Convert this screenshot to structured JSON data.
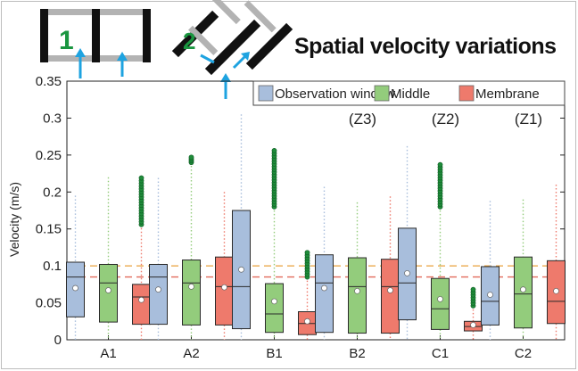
{
  "title": "Spatial velocity variations",
  "diagram_labels": {
    "straight_channel": "1",
    "angled_channel": "2"
  },
  "colors": {
    "observation_window": "#a8bedc",
    "middle": "#93cc7c",
    "membrane": "#ee7a6c",
    "outlier": "#1f8c3a",
    "ref_upper": "#e8a23c",
    "ref_lower": "#e26a5a",
    "arrow": "#1ea3e0",
    "channel_wall": "#111111",
    "channel_gray": "#b3b3b3",
    "diagram_number": "#1a9640"
  },
  "chart_data": {
    "type": "box",
    "ylabel": "Velocity (m/s)",
    "xlabel": "",
    "ylim": [
      0,
      0.35
    ],
    "yticks": [
      0,
      0.05,
      0.1,
      0.15,
      0.2,
      0.25,
      0.3,
      0.35
    ],
    "ytick_labels": [
      "0",
      "0.05",
      "0.1",
      "0.15",
      "0.2",
      "0.25",
      "0.3",
      "0.35"
    ],
    "grid": false,
    "legend_position": "top-right",
    "categories": [
      "A1",
      "A2",
      "B1",
      "B2",
      "C1",
      "C2"
    ],
    "zone_labels": [
      {
        "category": "B2",
        "text": "(Z3)"
      },
      {
        "category": "C1",
        "text": "(Z2)"
      },
      {
        "category": "C2",
        "text": "(Z1)"
      }
    ],
    "reference_lines": [
      {
        "y": 0.1,
        "style": "dashed",
        "color": "#e8a23c"
      },
      {
        "y": 0.085,
        "style": "dashed",
        "color": "#e26a5a"
      }
    ],
    "series": [
      {
        "name": "Observation window",
        "color": "#a8bedc",
        "boxes": [
          {
            "whisker_low": 0,
            "q1": 0.031,
            "median": 0.085,
            "q3": 0.105,
            "whisker_high": 0.195,
            "mean": 0.07
          },
          {
            "whisker_low": 0,
            "q1": 0.021,
            "median": 0.085,
            "q3": 0.102,
            "whisker_high": 0.219,
            "mean": 0.068
          },
          {
            "whisker_low": 0,
            "q1": 0.015,
            "median": 0.072,
            "q3": 0.175,
            "whisker_high": 0.305,
            "mean": 0.095
          },
          {
            "whisker_low": 0,
            "q1": 0.01,
            "median": 0.077,
            "q3": 0.115,
            "whisker_high": 0.207,
            "mean": 0.07
          },
          {
            "whisker_low": 0,
            "q1": 0.027,
            "median": 0.077,
            "q3": 0.151,
            "whisker_high": 0.262,
            "mean": 0.09
          },
          {
            "whisker_low": 0,
            "q1": 0.02,
            "median": 0.052,
            "q3": 0.099,
            "whisker_high": 0.188,
            "mean": 0.061
          }
        ]
      },
      {
        "name": "Middle",
        "color": "#93cc7c",
        "boxes": [
          {
            "whisker_low": 0,
            "q1": 0.024,
            "median": 0.077,
            "q3": 0.102,
            "whisker_high": 0.22,
            "mean": 0.067
          },
          {
            "whisker_low": 0,
            "q1": 0.02,
            "median": 0.077,
            "q3": 0.108,
            "whisker_high": 0.245,
            "mean": 0.072,
            "outliers_range": [
              0.24,
              0.247
            ]
          },
          {
            "whisker_low": 0,
            "q1": 0.01,
            "median": 0.035,
            "q3": 0.076,
            "whisker_high": 0.18,
            "mean": 0.052,
            "outliers_range": [
              0.18,
              0.256
            ]
          },
          {
            "whisker_low": 0,
            "q1": 0.009,
            "median": 0.072,
            "q3": 0.111,
            "whisker_high": 0.186,
            "mean": 0.066
          },
          {
            "whisker_low": 0,
            "q1": 0.014,
            "median": 0.042,
            "q3": 0.083,
            "whisker_high": 0.18,
            "mean": 0.055,
            "outliers_range": [
              0.18,
              0.237
            ]
          },
          {
            "whisker_low": 0,
            "q1": 0.016,
            "median": 0.062,
            "q3": 0.112,
            "whisker_high": 0.19,
            "mean": 0.068
          }
        ]
      },
      {
        "name": "Membrane",
        "color": "#ee7a6c",
        "boxes": [
          {
            "whisker_low": 0,
            "q1": 0.021,
            "median": 0.058,
            "q3": 0.075,
            "whisker_high": 0.156,
            "mean": 0.054,
            "outliers_range": [
              0.156,
              0.219
            ]
          },
          {
            "whisker_low": 0,
            "q1": 0.02,
            "median": 0.072,
            "q3": 0.112,
            "whisker_high": 0.2,
            "mean": 0.071
          },
          {
            "whisker_low": 0,
            "q1": 0.007,
            "median": 0.022,
            "q3": 0.038,
            "whisker_high": 0.085,
            "mean": 0.025,
            "outliers_range": [
              0.085,
              0.118
            ]
          },
          {
            "whisker_low": 0,
            "q1": 0.009,
            "median": 0.072,
            "q3": 0.109,
            "whisker_high": 0.194,
            "mean": 0.067
          },
          {
            "whisker_low": 0,
            "q1": 0.012,
            "median": 0.018,
            "q3": 0.025,
            "whisker_high": 0.046,
            "mean": 0.02,
            "outliers_range": [
              0.046,
              0.068
            ]
          },
          {
            "whisker_low": 0,
            "q1": 0.022,
            "median": 0.052,
            "q3": 0.107,
            "whisker_high": 0.21,
            "mean": 0.066
          }
        ]
      }
    ]
  }
}
